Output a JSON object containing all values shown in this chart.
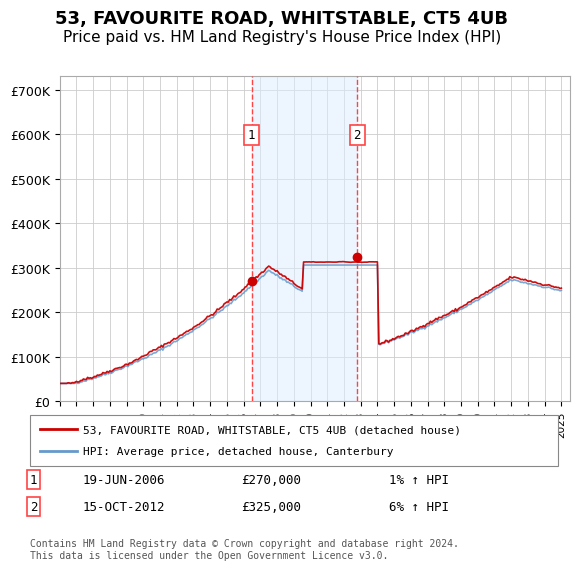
{
  "title": "53, FAVOURITE ROAD, WHITSTABLE, CT5 4UB",
  "subtitle": "Price paid vs. HM Land Registry's House Price Index (HPI)",
  "title_fontsize": 13,
  "subtitle_fontsize": 11,
  "ylabel_ticks": [
    "£0",
    "£100K",
    "£200K",
    "£300K",
    "£400K",
    "£500K",
    "£600K",
    "£700K"
  ],
  "ytick_vals": [
    0,
    100000,
    200000,
    300000,
    400000,
    500000,
    600000,
    700000
  ],
  "ylim": [
    0,
    730000
  ],
  "xlim_start": 1995.0,
  "xlim_end": 2025.5,
  "background_color": "#ffffff",
  "plot_bg_color": "#ffffff",
  "grid_color": "#cccccc",
  "sale1_date": 2006.47,
  "sale1_price": 270000,
  "sale1_label": "1",
  "sale2_date": 2012.79,
  "sale2_price": 325000,
  "sale2_label": "2",
  "shade_color": "#ddeeff",
  "shade_alpha": 0.5,
  "dashed_line_color": "#ff4444",
  "dashed_line_style": "--",
  "red_line_color": "#cc0000",
  "blue_line_color": "#6699cc",
  "legend_label_red": "53, FAVOURITE ROAD, WHITSTABLE, CT5 4UB (detached house)",
  "legend_label_blue": "HPI: Average price, detached house, Canterbury",
  "annotation1": "19-JUN-2006",
  "annotation1_price": "£270,000",
  "annotation1_hpi": "1% ↑ HPI",
  "annotation2": "15-OCT-2012",
  "annotation2_price": "£325,000",
  "annotation2_hpi": "6% ↑ HPI",
  "footer": "Contains HM Land Registry data © Crown copyright and database right 2024.\nThis data is licensed under the Open Government Licence v3.0.",
  "xtick_years": [
    1995,
    1996,
    1997,
    1998,
    1999,
    2000,
    2001,
    2002,
    2003,
    2004,
    2005,
    2006,
    2007,
    2008,
    2009,
    2010,
    2011,
    2012,
    2013,
    2014,
    2015,
    2016,
    2017,
    2018,
    2019,
    2020,
    2021,
    2022,
    2023,
    2024,
    2025
  ]
}
